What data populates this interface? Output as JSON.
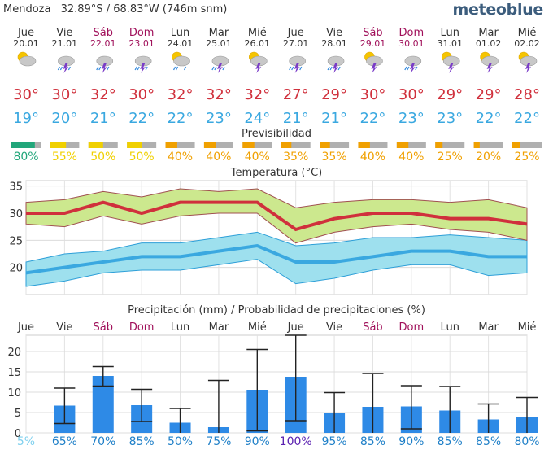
{
  "header": {
    "location": "Mendoza",
    "coords": "32.89°S / 68.83°W (746m snm)",
    "brand": "meteoblue"
  },
  "days": [
    {
      "name": "Jue",
      "date": "20.01",
      "weekend": false,
      "icon": "sun-cloud-icon",
      "tmax": 30,
      "tmin": 19,
      "predict": 80,
      "precip_prob": 5
    },
    {
      "name": "Vie",
      "date": "21.01",
      "weekend": false,
      "icon": "thunderstorm-rain-icon",
      "tmax": 30,
      "tmin": 20,
      "predict": 55,
      "precip_prob": 65
    },
    {
      "name": "Sáb",
      "date": "22.01",
      "weekend": true,
      "icon": "thunderstorm-rain-icon",
      "tmax": 32,
      "tmin": 21,
      "predict": 50,
      "precip_prob": 70
    },
    {
      "name": "Dom",
      "date": "23.01",
      "weekend": true,
      "icon": "thunderstorm-rain-icon",
      "tmax": 30,
      "tmin": 22,
      "predict": 50,
      "precip_prob": 85
    },
    {
      "name": "Lun",
      "date": "24.01",
      "weekend": false,
      "icon": "sun-cloud-rain-icon",
      "tmax": 32,
      "tmin": 22,
      "predict": 40,
      "precip_prob": 50
    },
    {
      "name": "Mar",
      "date": "25.01",
      "weekend": false,
      "icon": "thunderstorm-rain-icon",
      "tmax": 32,
      "tmin": 23,
      "predict": 40,
      "precip_prob": 75
    },
    {
      "name": "Mié",
      "date": "26.01",
      "weekend": false,
      "icon": "sun-cloud-thunder-icon",
      "tmax": 32,
      "tmin": 24,
      "predict": 40,
      "precip_prob": 90
    },
    {
      "name": "Jue",
      "date": "27.01",
      "weekend": false,
      "icon": "thunderstorm-rain-icon",
      "tmax": 27,
      "tmin": 21,
      "predict": 35,
      "precip_prob": 100
    },
    {
      "name": "Vie",
      "date": "28.01",
      "weekend": false,
      "icon": "thunderstorm-rain-icon",
      "tmax": 29,
      "tmin": 21,
      "predict": 35,
      "precip_prob": 95
    },
    {
      "name": "Sáb",
      "date": "29.01",
      "weekend": true,
      "icon": "sun-cloud-thunder-icon",
      "tmax": 30,
      "tmin": 22,
      "predict": 40,
      "precip_prob": 85
    },
    {
      "name": "Dom",
      "date": "30.01",
      "weekend": true,
      "icon": "thunderstorm-rain-icon",
      "tmax": 30,
      "tmin": 23,
      "predict": 40,
      "precip_prob": 90
    },
    {
      "name": "Lun",
      "date": "31.01",
      "weekend": false,
      "icon": "sun-cloud-thunder-icon",
      "tmax": 29,
      "tmin": 23,
      "predict": 25,
      "precip_prob": 85
    },
    {
      "name": "Mar",
      "date": "01.02",
      "weekend": false,
      "icon": "sun-cloud-thunder-icon",
      "tmax": 29,
      "tmin": 22,
      "predict": 20,
      "precip_prob": 85
    },
    {
      "name": "Mié",
      "date": "02.02",
      "weekend": false,
      "icon": "sun-cloud-thunder-icon",
      "tmax": 28,
      "tmin": 22,
      "predict": 25,
      "precip_prob": 80
    }
  ],
  "labels": {
    "degree": "°",
    "percent": "%",
    "predict_title": "Previsibilidad",
    "temp_title": "Temperatura (°C)",
    "precip_title": "Precipitación (mm) / Probabilidad de precipitaciones (%)"
  },
  "colors": {
    "tmax": "#d0303c",
    "tmin": "#3aa8e0",
    "weekend": "#a0105a",
    "predict_high": "#21a67a",
    "predict_mid": "#f0d000",
    "predict_low": "#f0a000",
    "bar": "#2e8ae6",
    "max_band": "#cce88e",
    "min_band": "#9ee0ee",
    "low_prob": "#7fd0ee",
    "mid_prob": "#2080c8",
    "high_prob": "#5a20b0"
  },
  "chart_data": [
    {
      "type": "line",
      "title": "Temperatura (°C)",
      "ylim": [
        15,
        36
      ],
      "yticks": [
        20,
        25,
        30,
        35
      ],
      "grid": true,
      "series": [
        {
          "name": "max",
          "values": [
            30,
            30,
            32,
            30,
            32,
            32,
            32,
            27,
            29,
            30,
            30,
            29,
            29,
            28
          ]
        },
        {
          "name": "max_range_high",
          "values": [
            32,
            32.5,
            34,
            33,
            34.5,
            34,
            34.5,
            31,
            32,
            32.5,
            32.5,
            32,
            32.5,
            31
          ]
        },
        {
          "name": "max_range_low",
          "values": [
            28,
            27.5,
            29.5,
            28,
            29.5,
            30,
            30,
            24.5,
            26.5,
            27.5,
            28,
            27,
            26.5,
            25
          ]
        },
        {
          "name": "min",
          "values": [
            19,
            20,
            21,
            22,
            22,
            23,
            24,
            21,
            21,
            22,
            23,
            23,
            22,
            22
          ]
        },
        {
          "name": "min_range_high",
          "values": [
            21,
            22.5,
            23,
            24.5,
            24.5,
            25.5,
            26.5,
            24,
            24.5,
            25.5,
            25.5,
            26,
            25.5,
            25
          ]
        },
        {
          "name": "min_range_low",
          "values": [
            16.5,
            17.5,
            19,
            19.5,
            19.5,
            20.5,
            21.5,
            17,
            18,
            19.5,
            20.5,
            20.5,
            18.5,
            19
          ]
        }
      ]
    },
    {
      "type": "bar",
      "title": "Precipitación (mm) / Probabilidad de precipitaciones (%)",
      "ylim": [
        0,
        24
      ],
      "yticks": [
        0,
        5,
        10,
        15,
        20
      ],
      "grid": true,
      "values": [
        0,
        6.7,
        14,
        6.8,
        2.5,
        1.4,
        10.6,
        13.8,
        4.8,
        6.4,
        6.5,
        5.5,
        3.3,
        4
      ],
      "err_low": [
        0,
        2.3,
        11.5,
        2.8,
        0,
        0,
        0.5,
        3,
        0,
        0,
        1,
        0,
        0,
        0
      ],
      "err_high": [
        0,
        11,
        16.3,
        10.7,
        6,
        12.9,
        20.5,
        24,
        9.9,
        14.6,
        11.6,
        11.4,
        7.1,
        8.7
      ]
    }
  ]
}
